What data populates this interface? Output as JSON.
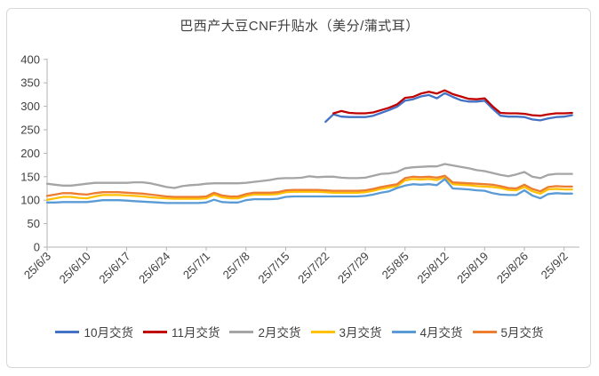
{
  "chart_data": {
    "type": "line",
    "title": "巴西产大豆CNF升贴水（美分/蒲式耳）",
    "xlabel": "",
    "ylabel": "",
    "ylim": [
      0,
      400
    ],
    "y_ticks": [
      0,
      50,
      100,
      150,
      200,
      250,
      300,
      350,
      400
    ],
    "grid": false,
    "legend_position": "bottom",
    "x_tick_labels": [
      "25/6/3",
      "25/6/10",
      "25/6/17",
      "25/6/24",
      "25/7/1",
      "25/7/8",
      "25/7/15",
      "25/7/22",
      "25/7/29",
      "25/8/5",
      "25/8/12",
      "25/8/19",
      "25/8/26",
      "25/9/2"
    ],
    "dates": [
      "25/6/3",
      "25/6/4",
      "25/6/5",
      "25/6/6",
      "25/6/9",
      "25/6/10",
      "25/6/11",
      "25/6/12",
      "25/6/13",
      "25/6/16",
      "25/6/17",
      "25/6/18",
      "25/6/19",
      "25/6/20",
      "25/6/23",
      "25/6/24",
      "25/6/25",
      "25/6/26",
      "25/6/27",
      "25/6/30",
      "25/7/1",
      "25/7/2",
      "25/7/3",
      "25/7/4",
      "25/7/7",
      "25/7/8",
      "25/7/9",
      "25/7/10",
      "25/7/11",
      "25/7/14",
      "25/7/15",
      "25/7/16",
      "25/7/17",
      "25/7/18",
      "25/7/21",
      "25/7/22",
      "25/7/23",
      "25/7/24",
      "25/7/25",
      "25/7/28",
      "25/7/29",
      "25/7/30",
      "25/7/31",
      "25/8/1",
      "25/8/4",
      "25/8/5",
      "25/8/6",
      "25/8/7",
      "25/8/8",
      "25/8/11",
      "25/8/12",
      "25/8/13",
      "25/8/14",
      "25/8/15",
      "25/8/18",
      "25/8/19",
      "25/8/20",
      "25/8/21",
      "25/8/22",
      "25/8/25",
      "25/8/26",
      "25/8/27",
      "25/8/28",
      "25/8/29",
      "25/9/1",
      "25/9/2",
      "25/9/3"
    ],
    "series": [
      {
        "name": "10月交货",
        "color": "#4472C4",
        "start_index": 35,
        "values": [
          267,
          283,
          278,
          277,
          277,
          277,
          280,
          286,
          292,
          299,
          312,
          315,
          321,
          324,
          317,
          328,
          320,
          313,
          310,
          310,
          312,
          295,
          280,
          278,
          278,
          277,
          272,
          270,
          274,
          277,
          278,
          281
        ]
      },
      {
        "name": "11月交货",
        "color": "#C00000",
        "start_index": 36,
        "values": [
          285,
          290,
          286,
          285,
          285,
          287,
          292,
          297,
          304,
          318,
          320,
          327,
          331,
          327,
          334,
          326,
          321,
          316,
          315,
          317,
          300,
          286,
          285,
          285,
          284,
          281,
          280,
          283,
          285,
          285,
          286
        ]
      },
      {
        "name": "2月交货",
        "color": "#A5A5A5",
        "start_index": 0,
        "values": [
          135,
          133,
          131,
          131,
          133,
          135,
          137,
          137,
          137,
          137,
          137,
          138,
          138,
          136,
          132,
          128,
          126,
          130,
          132,
          133,
          135,
          136,
          136,
          136,
          136,
          137,
          139,
          141,
          143,
          146,
          147,
          147,
          148,
          151,
          149,
          150,
          150,
          148,
          147,
          147,
          148,
          152,
          156,
          157,
          160,
          168,
          170,
          171,
          172,
          172,
          177,
          174,
          171,
          168,
          164,
          162,
          158,
          154,
          151,
          155,
          160,
          150,
          147,
          154,
          156,
          156,
          156
        ]
      },
      {
        "name": "3月交货",
        "color": "#FFC000",
        "start_index": 0,
        "values": [
          101,
          104,
          107,
          107,
          105,
          104,
          108,
          111,
          111,
          111,
          110,
          109,
          108,
          106,
          105,
          104,
          103,
          103,
          103,
          103,
          104,
          112,
          106,
          104,
          104,
          109,
          112,
          112,
          112,
          113,
          117,
          118,
          118,
          118,
          118,
          117,
          116,
          116,
          116,
          116,
          117,
          120,
          124,
          127,
          130,
          142,
          145,
          144,
          145,
          143,
          149,
          134,
          133,
          132,
          130,
          129,
          128,
          126,
          122,
          121,
          128,
          119,
          114,
          123,
          124,
          123,
          123
        ]
      },
      {
        "name": "4月交货",
        "color": "#5B9BD5",
        "start_index": 0,
        "values": [
          95,
          95,
          96,
          96,
          96,
          96,
          98,
          100,
          100,
          100,
          99,
          98,
          97,
          96,
          95,
          94,
          94,
          94,
          94,
          94,
          95,
          101,
          96,
          95,
          95,
          100,
          102,
          102,
          102,
          103,
          107,
          108,
          108,
          108,
          108,
          108,
          108,
          108,
          108,
          108,
          109,
          112,
          116,
          119,
          126,
          131,
          134,
          133,
          134,
          132,
          145,
          125,
          124,
          123,
          121,
          120,
          115,
          112,
          111,
          111,
          121,
          110,
          104,
          113,
          115,
          114,
          114
        ]
      },
      {
        "name": "5月交货",
        "color": "#ED7D31",
        "start_index": 0,
        "values": [
          109,
          112,
          115,
          115,
          113,
          112,
          115,
          117,
          117,
          117,
          116,
          115,
          114,
          112,
          110,
          108,
          107,
          107,
          107,
          107,
          108,
          116,
          110,
          108,
          108,
          113,
          116,
          116,
          116,
          117,
          121,
          122,
          122,
          122,
          122,
          121,
          120,
          120,
          120,
          120,
          121,
          124,
          128,
          131,
          134,
          147,
          150,
          149,
          150,
          148,
          152,
          138,
          137,
          136,
          135,
          134,
          133,
          130,
          126,
          125,
          133,
          124,
          119,
          128,
          130,
          129,
          129
        ]
      }
    ],
    "axis_color": "#b3b3b3",
    "tick_label_color": "#404040"
  }
}
